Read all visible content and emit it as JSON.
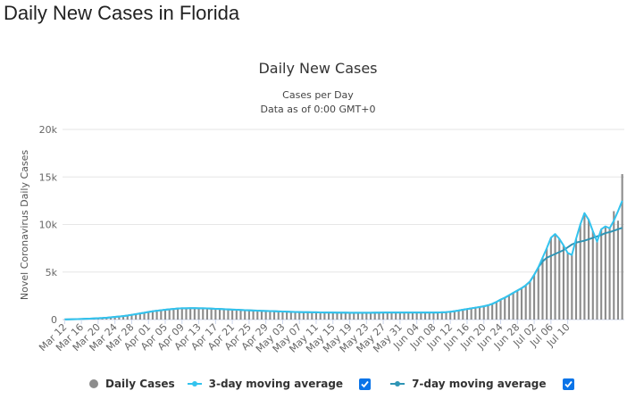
{
  "page": {
    "heading": "Daily New Cases in Florida"
  },
  "colors": {
    "daily": "#8c8c8c",
    "avg3": "#33c3ee",
    "avg7": "#2f95b5",
    "checkbox": "#0a74e8"
  },
  "chart_data": {
    "type": "bar",
    "title": "Daily New Cases",
    "subtitle_line1": "Cases per Day",
    "subtitle_line2": "Data as of 0:00 GMT+0",
    "ylabel": "Novel Coronavirus Daily Cases",
    "ylim": [
      0,
      20000
    ],
    "yticks": [
      0,
      5000,
      10000,
      15000,
      20000
    ],
    "ytick_labels": [
      "0",
      "5k",
      "10k",
      "15k",
      "20k"
    ],
    "grid": true,
    "legend_position": "bottom",
    "start_date": "2020-03-12",
    "x_tick_labels": [
      "Mar 12",
      "Mar 16",
      "Mar 20",
      "Mar 24",
      "Mar 28",
      "Apr 01",
      "Apr 05",
      "Apr 09",
      "Apr 13",
      "Apr 17",
      "Apr 21",
      "Apr 25",
      "Apr 29",
      "May 03",
      "May 07",
      "May 11",
      "May 15",
      "May 19",
      "May 23",
      "May 27",
      "May 31",
      "Jun 04",
      "Jun 08",
      "Jun 12",
      "Jun 16",
      "Jun 20",
      "Jun 24",
      "Jun 28",
      "Jul 02",
      "Jul 06",
      "Jul 10"
    ],
    "series": [
      {
        "name": "Daily Cases",
        "kind": "bar",
        "values": [
          15,
          25,
          35,
          45,
          60,
          80,
          100,
          120,
          140,
          160,
          190,
          230,
          280,
          320,
          360,
          420,
          500,
          570,
          650,
          720,
          800,
          870,
          930,
          980,
          1030,
          1080,
          1120,
          1160,
          1180,
          1190,
          1200,
          1200,
          1190,
          1180,
          1170,
          1150,
          1130,
          1110,
          1090,
          1070,
          1050,
          1030,
          1010,
          990,
          970,
          950,
          935,
          920,
          905,
          890,
          875,
          860,
          845,
          830,
          815,
          800,
          790,
          780,
          770,
          760,
          760,
          750,
          745,
          740,
          735,
          730,
          730,
          725,
          720,
          720,
          720,
          715,
          715,
          720,
          725,
          730,
          735,
          740,
          745,
          745,
          745,
          745,
          745,
          745,
          745,
          745,
          745,
          745,
          745,
          745,
          760,
          780,
          820,
          880,
          950,
          1030,
          1100,
          1180,
          1250,
          1320,
          1400,
          1500,
          1650,
          1850,
          2100,
          2300,
          2550,
          2800,
          3050,
          3300,
          3600,
          4000,
          4700,
          5500,
          6500,
          7500,
          8600,
          9000,
          8500,
          7800,
          7000,
          6800,
          8500,
          10000,
          11200,
          10500,
          9300,
          8200,
          9500,
          9800,
          9600,
          11400,
          10400,
          15300
        ]
      },
      {
        "name": "3-day moving average",
        "kind": "line",
        "values": [
          15,
          25,
          35,
          45,
          60,
          80,
          100,
          120,
          140,
          160,
          190,
          230,
          280,
          320,
          360,
          420,
          500,
          570,
          650,
          720,
          800,
          870,
          930,
          980,
          1030,
          1080,
          1120,
          1160,
          1180,
          1190,
          1200,
          1200,
          1190,
          1180,
          1170,
          1150,
          1130,
          1110,
          1090,
          1070,
          1050,
          1030,
          1010,
          990,
          970,
          950,
          935,
          920,
          905,
          890,
          875,
          860,
          845,
          830,
          815,
          800,
          790,
          780,
          770,
          760,
          760,
          750,
          745,
          740,
          735,
          730,
          730,
          725,
          720,
          720,
          720,
          715,
          715,
          720,
          725,
          730,
          735,
          740,
          745,
          745,
          745,
          745,
          745,
          745,
          745,
          745,
          745,
          745,
          745,
          745,
          760,
          780,
          820,
          880,
          950,
          1030,
          1100,
          1180,
          1250,
          1320,
          1400,
          1500,
          1650,
          1850,
          2100,
          2300,
          2550,
          2800,
          3050,
          3300,
          3600,
          4000,
          4700,
          5500,
          6500,
          7500,
          8600,
          9000,
          8500,
          7800,
          7000,
          6800,
          8500,
          10000,
          11200,
          10500,
          9300,
          8200,
          9500,
          9800,
          9600,
          10400,
          11400,
          12500
        ]
      },
      {
        "name": "7-day moving average",
        "kind": "line",
        "values": [
          15,
          25,
          35,
          45,
          60,
          80,
          100,
          120,
          140,
          160,
          190,
          230,
          280,
          320,
          360,
          420,
          500,
          570,
          650,
          720,
          800,
          870,
          930,
          980,
          1030,
          1080,
          1120,
          1160,
          1180,
          1190,
          1200,
          1200,
          1190,
          1180,
          1170,
          1150,
          1130,
          1110,
          1090,
          1070,
          1050,
          1030,
          1010,
          990,
          970,
          950,
          935,
          920,
          905,
          890,
          875,
          860,
          845,
          830,
          815,
          800,
          790,
          780,
          770,
          760,
          760,
          750,
          745,
          740,
          735,
          730,
          730,
          725,
          720,
          720,
          720,
          715,
          715,
          720,
          725,
          730,
          735,
          740,
          745,
          745,
          745,
          745,
          745,
          745,
          745,
          745,
          745,
          745,
          745,
          745,
          760,
          780,
          820,
          880,
          950,
          1030,
          1100,
          1180,
          1250,
          1320,
          1400,
          1500,
          1650,
          1850,
          2100,
          2300,
          2550,
          2800,
          3050,
          3300,
          3600,
          4000,
          4700,
          5500,
          6100,
          6500,
          6700,
          6900,
          7100,
          7300,
          7600,
          7900,
          8100,
          8200,
          8300,
          8450,
          8600,
          8750,
          8900,
          9100,
          9200,
          9350,
          9500,
          9650
        ]
      }
    ]
  },
  "legend": {
    "daily_label": "Daily Cases",
    "avg3_label": "3-day moving average",
    "avg7_label": "7-day moving average"
  }
}
